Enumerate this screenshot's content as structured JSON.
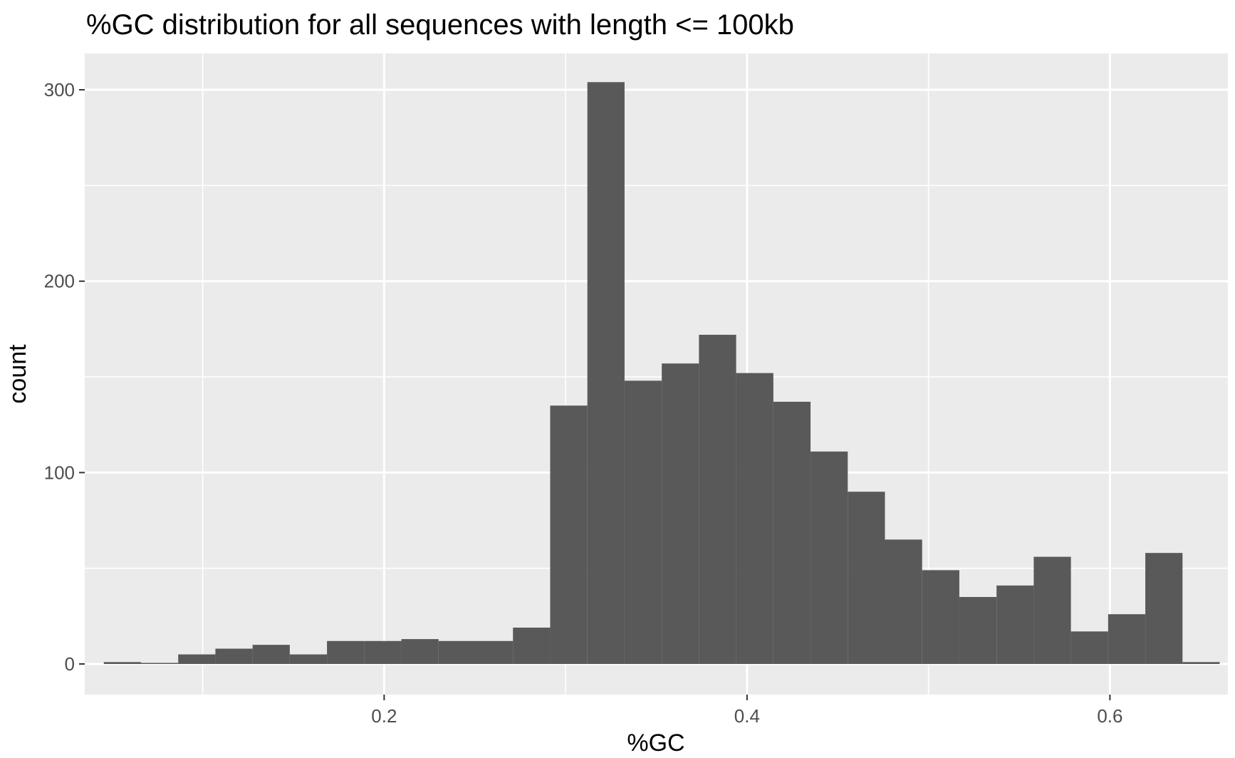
{
  "chart_data": {
    "type": "bar",
    "title": "%GC distribution for all sequences with length <= 100kb",
    "xlabel": "%GC",
    "ylabel": "count",
    "xlim": [
      0.035,
      0.665
    ],
    "ylim": [
      -16,
      319
    ],
    "bin_width": 0.0205,
    "x_ticks": [
      0.2,
      0.4,
      0.6
    ],
    "x_tick_labels": [
      "0.2",
      "0.4",
      "0.6"
    ],
    "y_ticks": [
      0,
      100,
      200,
      300
    ],
    "y_tick_labels": [
      "0",
      "100",
      "200",
      "300"
    ],
    "grid": true,
    "legend": "none",
    "colors": {
      "panel_background": "#ebebeb",
      "grid_line": "#ffffff",
      "bar_fill": "#595959"
    },
    "bins": [
      {
        "start": 0.0455,
        "end": 0.066,
        "count": 1
      },
      {
        "start": 0.066,
        "end": 0.0865,
        "count": 0
      },
      {
        "start": 0.0865,
        "end": 0.107,
        "count": 5
      },
      {
        "start": 0.107,
        "end": 0.1275,
        "count": 8
      },
      {
        "start": 0.1275,
        "end": 0.148,
        "count": 10
      },
      {
        "start": 0.148,
        "end": 0.1685,
        "count": 5
      },
      {
        "start": 0.1685,
        "end": 0.189,
        "count": 12
      },
      {
        "start": 0.189,
        "end": 0.2095,
        "count": 12
      },
      {
        "start": 0.2095,
        "end": 0.23,
        "count": 13
      },
      {
        "start": 0.23,
        "end": 0.2505,
        "count": 12
      },
      {
        "start": 0.2505,
        "end": 0.271,
        "count": 12
      },
      {
        "start": 0.271,
        "end": 0.2915,
        "count": 19
      },
      {
        "start": 0.2915,
        "end": 0.312,
        "count": 135
      },
      {
        "start": 0.312,
        "end": 0.3325,
        "count": 304
      },
      {
        "start": 0.3325,
        "end": 0.353,
        "count": 148
      },
      {
        "start": 0.353,
        "end": 0.3735,
        "count": 157
      },
      {
        "start": 0.3735,
        "end": 0.394,
        "count": 172
      },
      {
        "start": 0.394,
        "end": 0.4145,
        "count": 152
      },
      {
        "start": 0.4145,
        "end": 0.435,
        "count": 137
      },
      {
        "start": 0.435,
        "end": 0.4555,
        "count": 111
      },
      {
        "start": 0.4555,
        "end": 0.476,
        "count": 90
      },
      {
        "start": 0.476,
        "end": 0.4965,
        "count": 65
      },
      {
        "start": 0.4965,
        "end": 0.517,
        "count": 49
      },
      {
        "start": 0.517,
        "end": 0.5375,
        "count": 35
      },
      {
        "start": 0.5375,
        "end": 0.558,
        "count": 41
      },
      {
        "start": 0.558,
        "end": 0.5785,
        "count": 56
      },
      {
        "start": 0.5785,
        "end": 0.599,
        "count": 17
      },
      {
        "start": 0.599,
        "end": 0.6195,
        "count": 26
      },
      {
        "start": 0.6195,
        "end": 0.64,
        "count": 58
      },
      {
        "start": 0.64,
        "end": 0.6605,
        "count": 1
      }
    ]
  }
}
